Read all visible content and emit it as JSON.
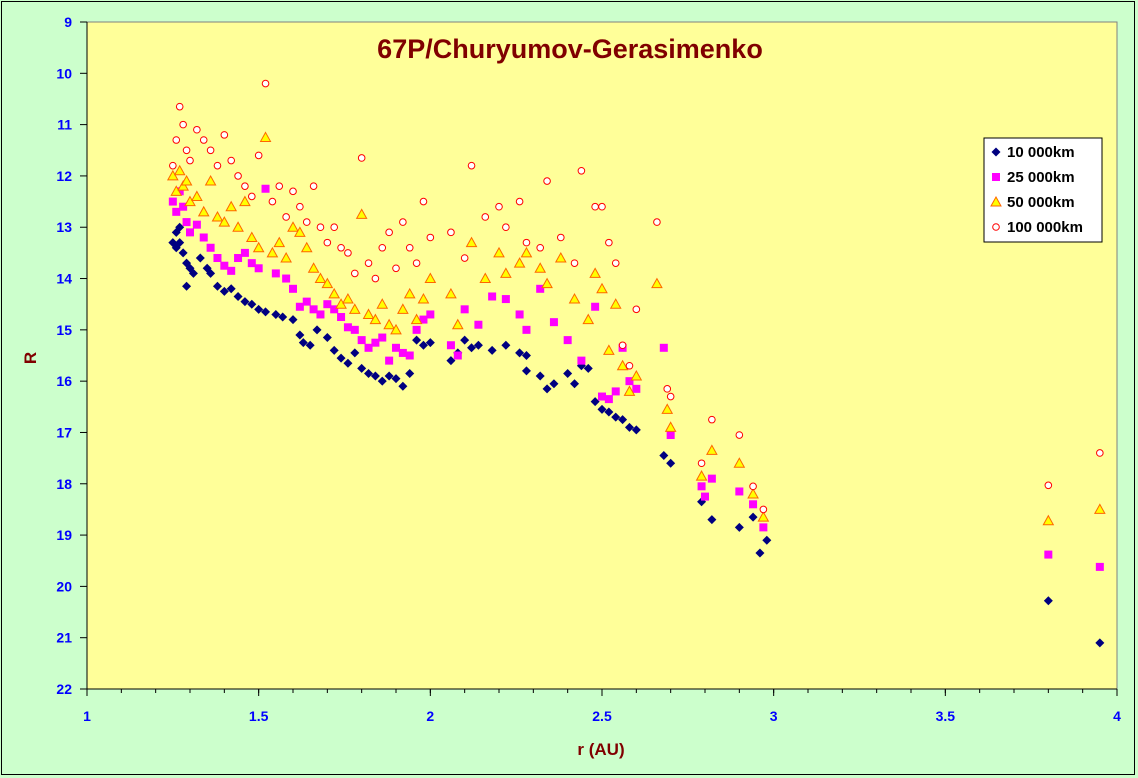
{
  "colors": {
    "background": "#ccffcc",
    "plot_area": "#ffff99",
    "series_10000": "#000080",
    "series_25000": "#ff00ff",
    "series_50000_fill": "#ffff00",
    "series_50000_edge": "#ff6600",
    "series_100000_edge": "#ff0000"
  },
  "chart_data": {
    "type": "scatter",
    "title": "67P/Churyumov-Gerasimenko",
    "xlabel": "r (AU)",
    "ylabel": "R",
    "xlim": [
      1,
      4
    ],
    "ylim": [
      22,
      9
    ],
    "y_reversed": true,
    "x_ticks": [
      "1",
      "1.5",
      "2",
      "2.5",
      "3",
      "3.5",
      "4"
    ],
    "y_ticks": [
      "9",
      "10",
      "11",
      "12",
      "13",
      "14",
      "15",
      "16",
      "17",
      "18",
      "19",
      "20",
      "21",
      "22"
    ],
    "grid": false,
    "legend_position": "top-right",
    "series": [
      {
        "name": "10 000km",
        "marker": "diamond",
        "points": [
          [
            1.25,
            13.3
          ],
          [
            1.26,
            13.1
          ],
          [
            1.26,
            13.4
          ],
          [
            1.27,
            13.0
          ],
          [
            1.27,
            13.3
          ],
          [
            1.28,
            13.5
          ],
          [
            1.29,
            13.7
          ],
          [
            1.29,
            14.15
          ],
          [
            1.3,
            13.8
          ],
          [
            1.31,
            13.9
          ],
          [
            1.33,
            13.6
          ],
          [
            1.35,
            13.8
          ],
          [
            1.36,
            13.9
          ],
          [
            1.38,
            14.15
          ],
          [
            1.4,
            14.25
          ],
          [
            1.42,
            14.2
          ],
          [
            1.44,
            14.35
          ],
          [
            1.46,
            14.45
          ],
          [
            1.48,
            14.5
          ],
          [
            1.5,
            14.6
          ],
          [
            1.52,
            14.65
          ],
          [
            1.55,
            14.7
          ],
          [
            1.57,
            14.75
          ],
          [
            1.6,
            14.8
          ],
          [
            1.62,
            15.1
          ],
          [
            1.63,
            15.25
          ],
          [
            1.65,
            15.3
          ],
          [
            1.67,
            15.0
          ],
          [
            1.7,
            15.15
          ],
          [
            1.72,
            15.4
          ],
          [
            1.74,
            15.55
          ],
          [
            1.76,
            15.65
          ],
          [
            1.78,
            15.45
          ],
          [
            1.8,
            15.75
          ],
          [
            1.82,
            15.85
          ],
          [
            1.84,
            15.9
          ],
          [
            1.86,
            16.0
          ],
          [
            1.88,
            15.9
          ],
          [
            1.9,
            15.95
          ],
          [
            1.92,
            16.1
          ],
          [
            1.94,
            15.85
          ],
          [
            1.96,
            15.2
          ],
          [
            1.98,
            15.3
          ],
          [
            2.0,
            15.25
          ],
          [
            2.06,
            15.6
          ],
          [
            2.08,
            15.45
          ],
          [
            2.1,
            15.2
          ],
          [
            2.12,
            15.35
          ],
          [
            2.14,
            15.3
          ],
          [
            2.18,
            15.4
          ],
          [
            2.22,
            15.3
          ],
          [
            2.26,
            15.45
          ],
          [
            2.28,
            15.5
          ],
          [
            2.28,
            15.8
          ],
          [
            2.32,
            15.9
          ],
          [
            2.34,
            16.15
          ],
          [
            2.36,
            16.05
          ],
          [
            2.4,
            15.85
          ],
          [
            2.42,
            16.05
          ],
          [
            2.44,
            15.7
          ],
          [
            2.46,
            15.75
          ],
          [
            2.48,
            16.4
          ],
          [
            2.5,
            16.55
          ],
          [
            2.52,
            16.6
          ],
          [
            2.54,
            16.7
          ],
          [
            2.56,
            16.75
          ],
          [
            2.58,
            16.9
          ],
          [
            2.6,
            16.95
          ],
          [
            2.68,
            17.45
          ],
          [
            2.7,
            17.6
          ],
          [
            2.79,
            18.35
          ],
          [
            2.82,
            18.7
          ],
          [
            2.9,
            18.85
          ],
          [
            2.94,
            18.65
          ],
          [
            2.96,
            19.35
          ],
          [
            2.98,
            19.1
          ],
          [
            3.8,
            20.28
          ],
          [
            3.95,
            21.1
          ]
        ]
      },
      {
        "name": "25 000km",
        "marker": "square",
        "points": [
          [
            1.25,
            12.5
          ],
          [
            1.26,
            12.7
          ],
          [
            1.27,
            12.3
          ],
          [
            1.28,
            12.6
          ],
          [
            1.29,
            12.9
          ],
          [
            1.3,
            13.1
          ],
          [
            1.32,
            12.95
          ],
          [
            1.34,
            13.2
          ],
          [
            1.36,
            13.4
          ],
          [
            1.38,
            13.6
          ],
          [
            1.4,
            13.75
          ],
          [
            1.42,
            13.85
          ],
          [
            1.44,
            13.6
          ],
          [
            1.46,
            13.5
          ],
          [
            1.48,
            13.7
          ],
          [
            1.5,
            13.8
          ],
          [
            1.52,
            12.25
          ],
          [
            1.55,
            13.9
          ],
          [
            1.58,
            14.0
          ],
          [
            1.6,
            14.2
          ],
          [
            1.62,
            14.55
          ],
          [
            1.64,
            14.45
          ],
          [
            1.66,
            14.6
          ],
          [
            1.68,
            14.7
          ],
          [
            1.7,
            14.5
          ],
          [
            1.72,
            14.6
          ],
          [
            1.74,
            14.75
          ],
          [
            1.76,
            14.95
          ],
          [
            1.78,
            15.0
          ],
          [
            1.8,
            15.2
          ],
          [
            1.82,
            15.35
          ],
          [
            1.84,
            15.25
          ],
          [
            1.86,
            15.15
          ],
          [
            1.88,
            15.6
          ],
          [
            1.9,
            15.35
          ],
          [
            1.92,
            15.45
          ],
          [
            1.94,
            15.5
          ],
          [
            1.96,
            15.0
          ],
          [
            1.98,
            14.8
          ],
          [
            2.0,
            14.7
          ],
          [
            2.06,
            15.3
          ],
          [
            2.08,
            15.5
          ],
          [
            2.1,
            14.6
          ],
          [
            2.14,
            14.9
          ],
          [
            2.18,
            14.35
          ],
          [
            2.22,
            14.4
          ],
          [
            2.26,
            14.7
          ],
          [
            2.28,
            15.0
          ],
          [
            2.32,
            14.2
          ],
          [
            2.36,
            14.85
          ],
          [
            2.4,
            15.2
          ],
          [
            2.44,
            15.6
          ],
          [
            2.48,
            14.55
          ],
          [
            2.5,
            16.3
          ],
          [
            2.52,
            16.35
          ],
          [
            2.54,
            16.2
          ],
          [
            2.56,
            15.35
          ],
          [
            2.58,
            16.0
          ],
          [
            2.6,
            16.15
          ],
          [
            2.68,
            15.35
          ],
          [
            2.7,
            17.05
          ],
          [
            2.79,
            18.05
          ],
          [
            2.8,
            18.25
          ],
          [
            2.82,
            17.9
          ],
          [
            2.9,
            18.15
          ],
          [
            2.94,
            18.4
          ],
          [
            2.97,
            18.85
          ],
          [
            3.8,
            19.38
          ],
          [
            3.95,
            19.62
          ]
        ]
      },
      {
        "name": "50 000km",
        "marker": "triangle",
        "points": [
          [
            1.25,
            12.0
          ],
          [
            1.26,
            12.3
          ],
          [
            1.27,
            11.9
          ],
          [
            1.28,
            12.2
          ],
          [
            1.29,
            12.1
          ],
          [
            1.3,
            12.5
          ],
          [
            1.32,
            12.4
          ],
          [
            1.34,
            12.7
          ],
          [
            1.36,
            12.1
          ],
          [
            1.38,
            12.8
          ],
          [
            1.4,
            12.9
          ],
          [
            1.42,
            12.6
          ],
          [
            1.44,
            13.0
          ],
          [
            1.46,
            12.5
          ],
          [
            1.48,
            13.2
          ],
          [
            1.5,
            13.4
          ],
          [
            1.52,
            11.25
          ],
          [
            1.54,
            13.5
          ],
          [
            1.56,
            13.3
          ],
          [
            1.58,
            13.6
          ],
          [
            1.6,
            13.0
          ],
          [
            1.62,
            13.1
          ],
          [
            1.64,
            13.4
          ],
          [
            1.66,
            13.8
          ],
          [
            1.68,
            14.0
          ],
          [
            1.7,
            14.1
          ],
          [
            1.72,
            14.3
          ],
          [
            1.74,
            14.5
          ],
          [
            1.76,
            14.4
          ],
          [
            1.78,
            14.6
          ],
          [
            1.8,
            12.75
          ],
          [
            1.82,
            14.7
          ],
          [
            1.84,
            14.8
          ],
          [
            1.86,
            14.5
          ],
          [
            1.88,
            14.9
          ],
          [
            1.9,
            15.0
          ],
          [
            1.92,
            14.6
          ],
          [
            1.94,
            14.3
          ],
          [
            1.96,
            14.8
          ],
          [
            1.98,
            14.4
          ],
          [
            2.0,
            14.0
          ],
          [
            2.06,
            14.3
          ],
          [
            2.08,
            14.9
          ],
          [
            2.12,
            13.3
          ],
          [
            2.16,
            14.0
          ],
          [
            2.2,
            13.5
          ],
          [
            2.22,
            13.9
          ],
          [
            2.26,
            13.7
          ],
          [
            2.28,
            13.5
          ],
          [
            2.32,
            13.8
          ],
          [
            2.34,
            14.1
          ],
          [
            2.38,
            13.6
          ],
          [
            2.42,
            14.4
          ],
          [
            2.46,
            14.8
          ],
          [
            2.48,
            13.9
          ],
          [
            2.5,
            14.2
          ],
          [
            2.52,
            15.4
          ],
          [
            2.54,
            14.5
          ],
          [
            2.56,
            15.7
          ],
          [
            2.58,
            16.2
          ],
          [
            2.6,
            15.9
          ],
          [
            2.66,
            14.1
          ],
          [
            2.69,
            16.55
          ],
          [
            2.7,
            16.9
          ],
          [
            2.79,
            17.85
          ],
          [
            2.82,
            17.35
          ],
          [
            2.9,
            17.6
          ],
          [
            2.94,
            18.2
          ],
          [
            2.97,
            18.65
          ],
          [
            3.8,
            18.72
          ],
          [
            3.95,
            18.5
          ]
        ]
      },
      {
        "name": "100 000km",
        "marker": "circle",
        "points": [
          [
            1.25,
            11.8
          ],
          [
            1.26,
            11.3
          ],
          [
            1.27,
            10.65
          ],
          [
            1.28,
            11.0
          ],
          [
            1.29,
            11.5
          ],
          [
            1.3,
            11.7
          ],
          [
            1.32,
            11.1
          ],
          [
            1.34,
            11.3
          ],
          [
            1.36,
            11.5
          ],
          [
            1.38,
            11.8
          ],
          [
            1.4,
            11.2
          ],
          [
            1.42,
            11.7
          ],
          [
            1.44,
            12.0
          ],
          [
            1.46,
            12.2
          ],
          [
            1.48,
            12.4
          ],
          [
            1.5,
            11.6
          ],
          [
            1.52,
            10.2
          ],
          [
            1.54,
            12.5
          ],
          [
            1.56,
            12.2
          ],
          [
            1.58,
            12.8
          ],
          [
            1.6,
            12.3
          ],
          [
            1.62,
            12.6
          ],
          [
            1.64,
            12.9
          ],
          [
            1.66,
            12.2
          ],
          [
            1.68,
            13.0
          ],
          [
            1.7,
            13.3
          ],
          [
            1.72,
            13.0
          ],
          [
            1.74,
            13.4
          ],
          [
            1.76,
            13.5
          ],
          [
            1.78,
            13.9
          ],
          [
            1.8,
            11.65
          ],
          [
            1.82,
            13.7
          ],
          [
            1.84,
            14.0
          ],
          [
            1.86,
            13.4
          ],
          [
            1.88,
            13.1
          ],
          [
            1.9,
            13.8
          ],
          [
            1.92,
            12.9
          ],
          [
            1.94,
            13.4
          ],
          [
            1.96,
            13.7
          ],
          [
            1.98,
            12.5
          ],
          [
            2.0,
            13.2
          ],
          [
            2.06,
            13.1
          ],
          [
            2.1,
            13.6
          ],
          [
            2.12,
            11.8
          ],
          [
            2.16,
            12.8
          ],
          [
            2.2,
            12.6
          ],
          [
            2.22,
            13.0
          ],
          [
            2.26,
            12.5
          ],
          [
            2.28,
            13.3
          ],
          [
            2.32,
            13.4
          ],
          [
            2.34,
            12.1
          ],
          [
            2.38,
            13.2
          ],
          [
            2.42,
            13.7
          ],
          [
            2.44,
            11.9
          ],
          [
            2.48,
            12.6
          ],
          [
            2.5,
            12.6
          ],
          [
            2.52,
            13.3
          ],
          [
            2.54,
            13.7
          ],
          [
            2.56,
            15.3
          ],
          [
            2.58,
            15.7
          ],
          [
            2.6,
            14.6
          ],
          [
            2.66,
            12.9
          ],
          [
            2.69,
            16.15
          ],
          [
            2.7,
            16.3
          ],
          [
            2.79,
            17.6
          ],
          [
            2.82,
            16.75
          ],
          [
            2.9,
            17.05
          ],
          [
            2.94,
            18.05
          ],
          [
            2.97,
            18.5
          ],
          [
            3.8,
            18.03
          ],
          [
            3.95,
            17.4
          ]
        ]
      }
    ]
  }
}
